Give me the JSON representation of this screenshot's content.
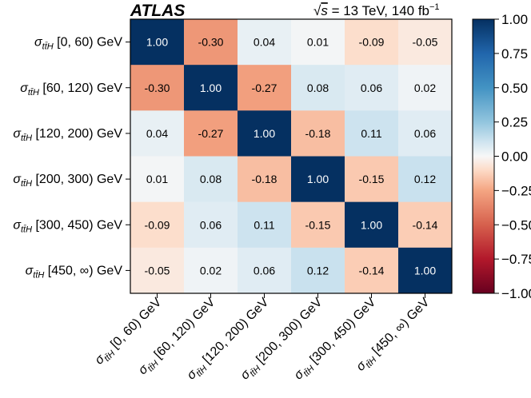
{
  "chart_data": {
    "type": "heatmap",
    "experiment": "ATLAS",
    "energy_label": "= 13 TeV, 140 fb",
    "energy_label_sup": "−1",
    "sqrt_symbol": "√",
    "sqrt_var": "s",
    "row_symbol": "σ",
    "row_subscript": "tt̄H",
    "bins": [
      "[0, 60) GeV",
      "[60, 120) GeV",
      "[120, 200) GeV",
      "[200, 300) GeV",
      "[300, 450) GeV",
      "[450, ∞) GeV"
    ],
    "matrix": [
      [
        "1.00",
        "-0.30",
        "0.04",
        "0.01",
        "-0.09",
        "-0.05"
      ],
      [
        "-0.30",
        "1.00",
        "-0.27",
        "0.08",
        "0.06",
        "0.02"
      ],
      [
        "0.04",
        "-0.27",
        "1.00",
        "-0.18",
        "0.11",
        "0.06"
      ],
      [
        "0.01",
        "0.08",
        "-0.18",
        "1.00",
        "-0.15",
        "0.12"
      ],
      [
        "-0.09",
        "0.06",
        "0.11",
        "-0.15",
        "1.00",
        "-0.14"
      ],
      [
        "-0.05",
        "0.02",
        "0.06",
        "0.12",
        "-0.14",
        "1.00"
      ]
    ],
    "colorbar": {
      "min": -1.0,
      "max": 1.0,
      "ticks": [
        "1.00",
        "0.75",
        "0.50",
        "0.25",
        "0.00",
        "−0.25",
        "−0.50",
        "−0.75",
        "−1.00"
      ],
      "colormap": "RdBu"
    }
  }
}
